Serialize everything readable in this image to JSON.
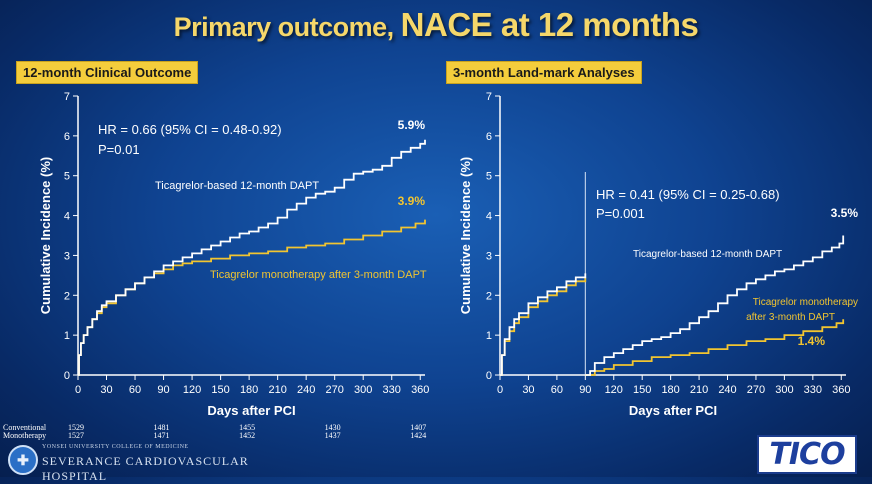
{
  "title": {
    "part1": "Primary outcome, ",
    "part2": "NACE at 12 months"
  },
  "colors": {
    "conventional": "#ffffff",
    "monotherapy": "#f2c530",
    "title": "#f5d76a",
    "label_bg": "#f4cd3c"
  },
  "chart_data": [
    {
      "type": "line",
      "panel_label": "12-month Clinical Outcome",
      "xlabel": "Days after PCI",
      "ylabel": "Cumulative Incidence (%)",
      "xlim": [
        0,
        365
      ],
      "ylim": [
        0,
        7
      ],
      "xticks": [
        0,
        30,
        60,
        90,
        120,
        150,
        180,
        210,
        240,
        270,
        300,
        330,
        360
      ],
      "yticks": [
        0,
        1,
        2,
        3,
        4,
        5,
        6,
        7
      ],
      "annotations": {
        "hr": "HR = 0.66 (95% CI = 0.48-0.92)",
        "p": "P=0.01"
      },
      "series": [
        {
          "name": "Ticagrelor-based 12-month DAPT",
          "end_label": "5.9%",
          "x": [
            0,
            1,
            3,
            6,
            10,
            15,
            20,
            25,
            30,
            40,
            50,
            60,
            70,
            80,
            90,
            100,
            110,
            120,
            130,
            140,
            150,
            160,
            170,
            180,
            190,
            200,
            210,
            220,
            230,
            240,
            250,
            260,
            270,
            280,
            290,
            300,
            310,
            320,
            330,
            340,
            350,
            360,
            365
          ],
          "y": [
            0,
            0.5,
            0.8,
            1.0,
            1.2,
            1.4,
            1.6,
            1.75,
            1.85,
            2.0,
            2.15,
            2.3,
            2.45,
            2.6,
            2.75,
            2.85,
            2.95,
            3.05,
            3.15,
            3.25,
            3.35,
            3.45,
            3.55,
            3.6,
            3.7,
            3.8,
            3.95,
            4.15,
            4.3,
            4.45,
            4.55,
            4.6,
            4.7,
            4.9,
            5.05,
            5.1,
            5.15,
            5.25,
            5.45,
            5.6,
            5.7,
            5.8,
            5.9
          ]
        },
        {
          "name": "Ticagrelor monotherapy after 3-month DAPT",
          "end_label": "3.9%",
          "x": [
            0,
            1,
            3,
            6,
            10,
            15,
            20,
            25,
            30,
            40,
            50,
            60,
            70,
            80,
            90,
            100,
            110,
            120,
            140,
            160,
            180,
            200,
            220,
            240,
            260,
            280,
            300,
            320,
            340,
            355,
            365
          ],
          "y": [
            0,
            0.5,
            0.8,
            1.0,
            1.2,
            1.4,
            1.55,
            1.7,
            1.8,
            2.0,
            2.15,
            2.3,
            2.45,
            2.55,
            2.65,
            2.75,
            2.8,
            2.85,
            2.92,
            3.0,
            3.05,
            3.1,
            3.2,
            3.25,
            3.3,
            3.4,
            3.5,
            3.6,
            3.7,
            3.8,
            3.9
          ]
        }
      ],
      "risk_table": {
        "rows": [
          {
            "label": "Conventional",
            "values": [
              "1529",
              "1481",
              "1455",
              "1430",
              "1407"
            ]
          },
          {
            "label": "Monotherapy",
            "values": [
              "1527",
              "1471",
              "1452",
              "1437",
              "1424"
            ]
          }
        ],
        "x": [
          0,
          90,
          180,
          270,
          360
        ]
      }
    },
    {
      "type": "line",
      "panel_label": "3-month Land-mark Analyses",
      "xlabel": "Days after PCI",
      "ylabel": "Cumulative Incidence (%)",
      "xlim": [
        0,
        365
      ],
      "ylim": [
        0,
        7
      ],
      "xticks": [
        0,
        30,
        60,
        90,
        120,
        150,
        180,
        210,
        240,
        270,
        300,
        330,
        360
      ],
      "yticks": [
        0,
        1,
        2,
        3,
        4,
        5,
        6,
        7
      ],
      "landmark_day": 90,
      "annotations": {
        "hr": "HR = 0.41 (95% CI = 0.25-0.68)",
        "p": "P=0.001"
      },
      "series": [
        {
          "name": "Ticagrelor-based 12-month DAPT",
          "end_label": "3.5%",
          "segments": [
            {
              "x": [
                0,
                2,
                5,
                10,
                15,
                20,
                30,
                40,
                50,
                60,
                70,
                80,
                90
              ],
              "y": [
                0,
                0.5,
                0.9,
                1.2,
                1.4,
                1.55,
                1.8,
                1.95,
                2.1,
                2.2,
                2.35,
                2.45,
                2.55
              ]
            },
            {
              "x": [
                90,
                95,
                100,
                110,
                120,
                130,
                140,
                150,
                160,
                170,
                180,
                190,
                200,
                210,
                220,
                230,
                240,
                250,
                260,
                270,
                280,
                290,
                300,
                310,
                320,
                330,
                340,
                350,
                358,
                362
              ],
              "y": [
                0,
                0.1,
                0.3,
                0.45,
                0.55,
                0.65,
                0.75,
                0.85,
                0.9,
                0.95,
                1.05,
                1.15,
                1.3,
                1.45,
                1.6,
                1.8,
                2.0,
                2.15,
                2.3,
                2.4,
                2.5,
                2.6,
                2.65,
                2.75,
                2.85,
                2.95,
                3.1,
                3.2,
                3.3,
                3.5
              ]
            }
          ]
        },
        {
          "name": "Ticagrelor monotherapy after 3-month DAPT",
          "end_label": "1.4%",
          "segments": [
            {
              "x": [
                0,
                2,
                5,
                10,
                15,
                20,
                30,
                40,
                50,
                60,
                70,
                80,
                90
              ],
              "y": [
                0,
                0.5,
                0.85,
                1.1,
                1.3,
                1.45,
                1.7,
                1.85,
                2.0,
                2.1,
                2.25,
                2.35,
                2.45
              ]
            },
            {
              "x": [
                90,
                100,
                110,
                120,
                140,
                160,
                180,
                200,
                220,
                240,
                260,
                280,
                300,
                320,
                340,
                355,
                362
              ],
              "y": [
                0,
                0.1,
                0.15,
                0.25,
                0.35,
                0.45,
                0.5,
                0.55,
                0.65,
                0.75,
                0.85,
                0.9,
                1.0,
                1.1,
                1.2,
                1.3,
                1.4
              ]
            }
          ]
        }
      ]
    }
  ],
  "footer": {
    "university": "YONSEI UNIVERSITY COLLEGE OF MEDICINE",
    "hospital": "SEVERANCE CARDIOVASCULAR HOSPITAL",
    "trial_logo": "TICO"
  }
}
